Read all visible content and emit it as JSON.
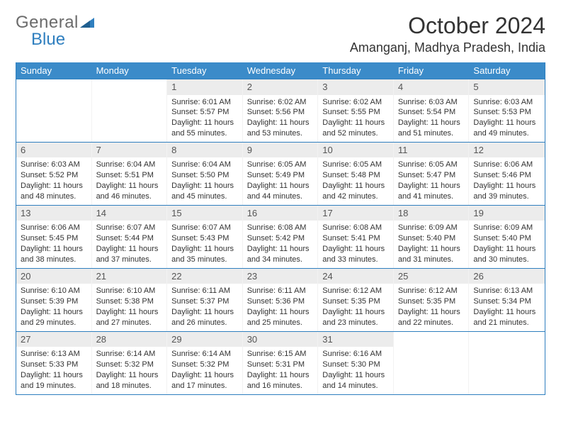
{
  "brand": {
    "part1": "General",
    "part2": "Blue"
  },
  "title": "October 2024",
  "location": "Amanganj, Madhya Pradesh, India",
  "colors": {
    "header_bg": "#3b8bc9",
    "border": "#2f7fbf",
    "daynum_bg": "#ececec"
  },
  "weekdays": [
    "Sunday",
    "Monday",
    "Tuesday",
    "Wednesday",
    "Thursday",
    "Friday",
    "Saturday"
  ],
  "weeks": [
    [
      null,
      null,
      {
        "n": "1",
        "sr": "Sunrise: 6:01 AM",
        "ss": "Sunset: 5:57 PM",
        "dl": "Daylight: 11 hours and 55 minutes."
      },
      {
        "n": "2",
        "sr": "Sunrise: 6:02 AM",
        "ss": "Sunset: 5:56 PM",
        "dl": "Daylight: 11 hours and 53 minutes."
      },
      {
        "n": "3",
        "sr": "Sunrise: 6:02 AM",
        "ss": "Sunset: 5:55 PM",
        "dl": "Daylight: 11 hours and 52 minutes."
      },
      {
        "n": "4",
        "sr": "Sunrise: 6:03 AM",
        "ss": "Sunset: 5:54 PM",
        "dl": "Daylight: 11 hours and 51 minutes."
      },
      {
        "n": "5",
        "sr": "Sunrise: 6:03 AM",
        "ss": "Sunset: 5:53 PM",
        "dl": "Daylight: 11 hours and 49 minutes."
      }
    ],
    [
      {
        "n": "6",
        "sr": "Sunrise: 6:03 AM",
        "ss": "Sunset: 5:52 PM",
        "dl": "Daylight: 11 hours and 48 minutes."
      },
      {
        "n": "7",
        "sr": "Sunrise: 6:04 AM",
        "ss": "Sunset: 5:51 PM",
        "dl": "Daylight: 11 hours and 46 minutes."
      },
      {
        "n": "8",
        "sr": "Sunrise: 6:04 AM",
        "ss": "Sunset: 5:50 PM",
        "dl": "Daylight: 11 hours and 45 minutes."
      },
      {
        "n": "9",
        "sr": "Sunrise: 6:05 AM",
        "ss": "Sunset: 5:49 PM",
        "dl": "Daylight: 11 hours and 44 minutes."
      },
      {
        "n": "10",
        "sr": "Sunrise: 6:05 AM",
        "ss": "Sunset: 5:48 PM",
        "dl": "Daylight: 11 hours and 42 minutes."
      },
      {
        "n": "11",
        "sr": "Sunrise: 6:05 AM",
        "ss": "Sunset: 5:47 PM",
        "dl": "Daylight: 11 hours and 41 minutes."
      },
      {
        "n": "12",
        "sr": "Sunrise: 6:06 AM",
        "ss": "Sunset: 5:46 PM",
        "dl": "Daylight: 11 hours and 39 minutes."
      }
    ],
    [
      {
        "n": "13",
        "sr": "Sunrise: 6:06 AM",
        "ss": "Sunset: 5:45 PM",
        "dl": "Daylight: 11 hours and 38 minutes."
      },
      {
        "n": "14",
        "sr": "Sunrise: 6:07 AM",
        "ss": "Sunset: 5:44 PM",
        "dl": "Daylight: 11 hours and 37 minutes."
      },
      {
        "n": "15",
        "sr": "Sunrise: 6:07 AM",
        "ss": "Sunset: 5:43 PM",
        "dl": "Daylight: 11 hours and 35 minutes."
      },
      {
        "n": "16",
        "sr": "Sunrise: 6:08 AM",
        "ss": "Sunset: 5:42 PM",
        "dl": "Daylight: 11 hours and 34 minutes."
      },
      {
        "n": "17",
        "sr": "Sunrise: 6:08 AM",
        "ss": "Sunset: 5:41 PM",
        "dl": "Daylight: 11 hours and 33 minutes."
      },
      {
        "n": "18",
        "sr": "Sunrise: 6:09 AM",
        "ss": "Sunset: 5:40 PM",
        "dl": "Daylight: 11 hours and 31 minutes."
      },
      {
        "n": "19",
        "sr": "Sunrise: 6:09 AM",
        "ss": "Sunset: 5:40 PM",
        "dl": "Daylight: 11 hours and 30 minutes."
      }
    ],
    [
      {
        "n": "20",
        "sr": "Sunrise: 6:10 AM",
        "ss": "Sunset: 5:39 PM",
        "dl": "Daylight: 11 hours and 29 minutes."
      },
      {
        "n": "21",
        "sr": "Sunrise: 6:10 AM",
        "ss": "Sunset: 5:38 PM",
        "dl": "Daylight: 11 hours and 27 minutes."
      },
      {
        "n": "22",
        "sr": "Sunrise: 6:11 AM",
        "ss": "Sunset: 5:37 PM",
        "dl": "Daylight: 11 hours and 26 minutes."
      },
      {
        "n": "23",
        "sr": "Sunrise: 6:11 AM",
        "ss": "Sunset: 5:36 PM",
        "dl": "Daylight: 11 hours and 25 minutes."
      },
      {
        "n": "24",
        "sr": "Sunrise: 6:12 AM",
        "ss": "Sunset: 5:35 PM",
        "dl": "Daylight: 11 hours and 23 minutes."
      },
      {
        "n": "25",
        "sr": "Sunrise: 6:12 AM",
        "ss": "Sunset: 5:35 PM",
        "dl": "Daylight: 11 hours and 22 minutes."
      },
      {
        "n": "26",
        "sr": "Sunrise: 6:13 AM",
        "ss": "Sunset: 5:34 PM",
        "dl": "Daylight: 11 hours and 21 minutes."
      }
    ],
    [
      {
        "n": "27",
        "sr": "Sunrise: 6:13 AM",
        "ss": "Sunset: 5:33 PM",
        "dl": "Daylight: 11 hours and 19 minutes."
      },
      {
        "n": "28",
        "sr": "Sunrise: 6:14 AM",
        "ss": "Sunset: 5:32 PM",
        "dl": "Daylight: 11 hours and 18 minutes."
      },
      {
        "n": "29",
        "sr": "Sunrise: 6:14 AM",
        "ss": "Sunset: 5:32 PM",
        "dl": "Daylight: 11 hours and 17 minutes."
      },
      {
        "n": "30",
        "sr": "Sunrise: 6:15 AM",
        "ss": "Sunset: 5:31 PM",
        "dl": "Daylight: 11 hours and 16 minutes."
      },
      {
        "n": "31",
        "sr": "Sunrise: 6:16 AM",
        "ss": "Sunset: 5:30 PM",
        "dl": "Daylight: 11 hours and 14 minutes."
      },
      null,
      null
    ]
  ]
}
